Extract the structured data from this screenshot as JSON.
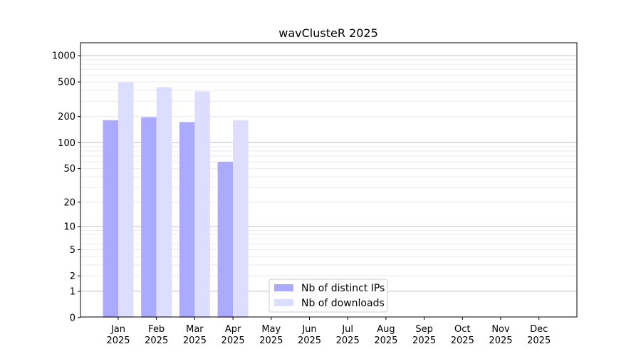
{
  "chart_data": {
    "type": "bar",
    "title": "wavClusteR 2025",
    "xlabel": "",
    "ylabel": "",
    "yscale": "log(y+1)",
    "ylim": [
      0,
      1300
    ],
    "yticks": [
      0,
      1,
      2,
      5,
      10,
      20,
      50,
      100,
      200,
      500,
      1000
    ],
    "categories": [
      "Jan",
      "Feb",
      "Mar",
      "Apr",
      "May",
      "Jun",
      "Jul",
      "Aug",
      "Sep",
      "Oct",
      "Nov",
      "Dec"
    ],
    "category_year": "2025",
    "grid": true,
    "legend_position": "lower-center",
    "series": [
      {
        "name": "Nb of distinct IPs",
        "color": "#aaaaff",
        "values": [
          182,
          197,
          173,
          60,
          null,
          null,
          null,
          null,
          null,
          null,
          null,
          null
        ]
      },
      {
        "name": "Nb of downloads",
        "color": "#ddddff",
        "values": [
          497,
          436,
          389,
          182,
          null,
          null,
          null,
          null,
          null,
          null,
          null,
          null
        ]
      }
    ]
  }
}
